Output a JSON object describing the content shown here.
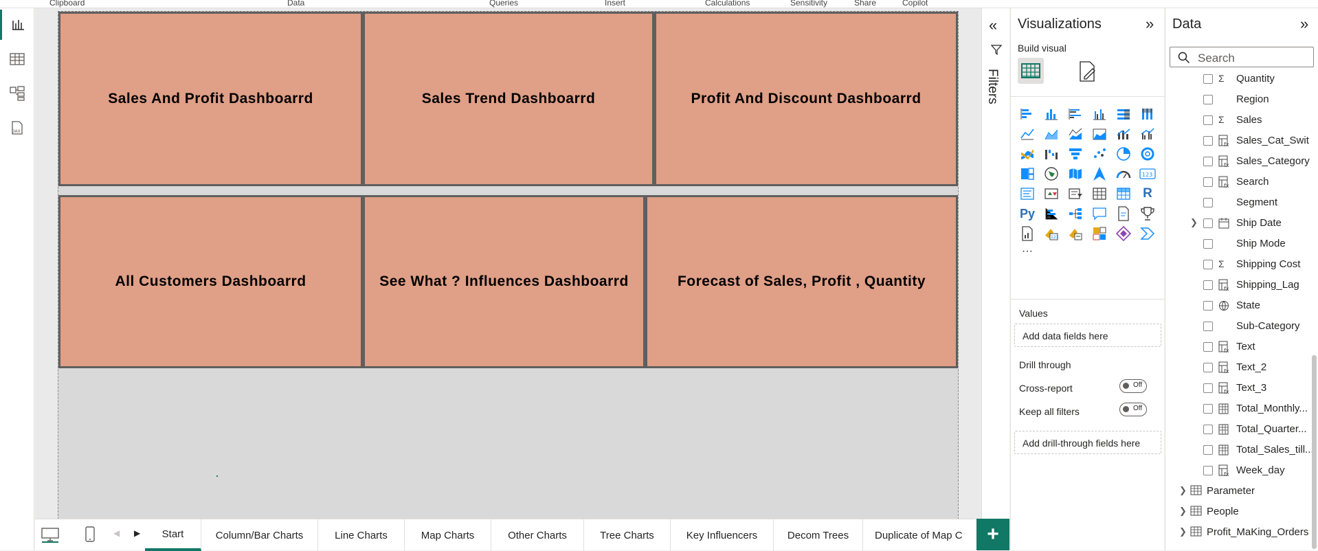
{
  "ribbon": {
    "groups": [
      "Clipboard",
      "Data",
      "Queries",
      "Insert",
      "Calculations",
      "Sensitivity",
      "Share",
      "Copilot"
    ]
  },
  "rail": {
    "icons": [
      "report-view-icon",
      "table-view-icon",
      "model-view-icon",
      "dax-query-icon"
    ]
  },
  "canvas": {
    "tiles": [
      "Sales And Profit Dashboarrd",
      "Sales Trend Dashboarrd",
      "Profit And Discount Dashboarrd",
      "All Customers Dashboarrd",
      "See What ? Influences Dashboarrd",
      "Forecast of Sales, Profit , Quantity"
    ],
    "tile_color": "#e09f87"
  },
  "tabs": {
    "items": [
      "Start",
      "Column/Bar Charts",
      "Line Charts",
      "Map Charts",
      "Other Charts",
      "Tree Charts",
      "Key Influencers",
      "Decom Trees",
      "Duplicate of Map C"
    ],
    "active": "Start",
    "add_label": "+"
  },
  "filters": {
    "label": "Filters"
  },
  "visualizations": {
    "title": "Visualizations",
    "build_visual": "Build visual",
    "more": "···",
    "values_label": "Values",
    "values_well": "Add data fields here",
    "drill_through": "Drill through",
    "cross_report": "Cross-report",
    "cross_report_state": "Off",
    "keep_all_filters": "Keep all filters",
    "keep_all_filters_state": "Off",
    "drill_well": "Add drill-through fields here"
  },
  "data_pane": {
    "title": "Data",
    "search_placeholder": "Search",
    "fields": [
      {
        "name": "Quantity",
        "icon": "Σ"
      },
      {
        "name": "Region",
        "icon": ""
      },
      {
        "name": "Sales",
        "icon": "Σ"
      },
      {
        "name": "Sales_Cat_Swit",
        "icon": "calc"
      },
      {
        "name": "Sales_Category",
        "icon": "calc"
      },
      {
        "name": "Search",
        "icon": "calc"
      },
      {
        "name": "Segment",
        "icon": ""
      },
      {
        "name": "Ship Date",
        "icon": "date",
        "expandable": true
      },
      {
        "name": "Ship Mode",
        "icon": ""
      },
      {
        "name": "Shipping Cost",
        "icon": "Σ"
      },
      {
        "name": "Shipping_Lag",
        "icon": "calc"
      },
      {
        "name": "State",
        "icon": "globe"
      },
      {
        "name": "Sub-Category",
        "icon": ""
      },
      {
        "name": "Text",
        "icon": "calc"
      },
      {
        "name": "Text_2",
        "icon": "calc"
      },
      {
        "name": "Text_3",
        "icon": "calc"
      },
      {
        "name": "Total_Monthly...",
        "icon": "measure"
      },
      {
        "name": "Total_Quarter...",
        "icon": "measure"
      },
      {
        "name": "Total_Sales_till...",
        "icon": "measure"
      },
      {
        "name": "Week_day",
        "icon": "calc"
      }
    ],
    "tables": [
      "Parameter",
      "People",
      "Profit_MaKing_Orders"
    ]
  }
}
